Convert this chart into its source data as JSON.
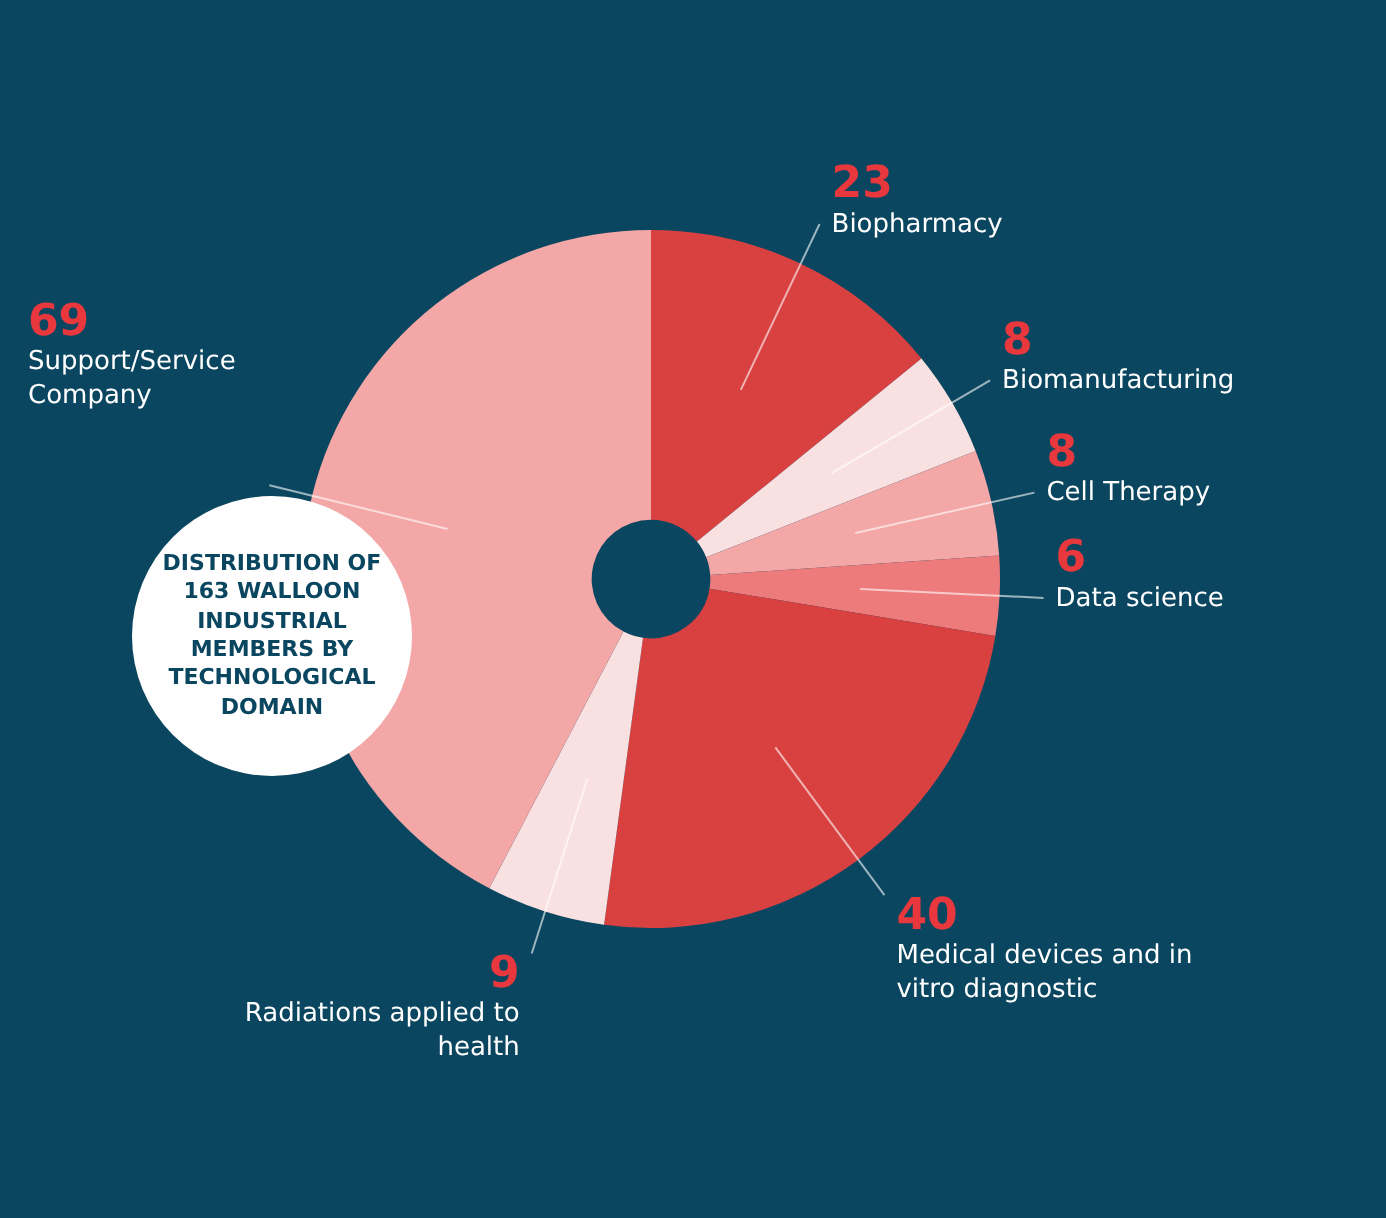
{
  "chart_data": {
    "type": "donut",
    "title": "DISTRIBUTION OF 163 WALLOON INDUSTRIAL MEMBERS BY TECHNOLOGICAL DOMAIN",
    "categories": [
      "Biopharmacy",
      "Biomanufacturing",
      "Cell Therapy",
      "Data science",
      "Medical devices and in vitro diagnostic",
      "Radiations applied to health",
      "Support/Service Company"
    ],
    "values": [
      23,
      8,
      8,
      6,
      40,
      9,
      69
    ],
    "colors": [
      "#d94141",
      "#fae1e1",
      "#f4a7a7",
      "#ee7b7b",
      "#d94141",
      "#fae1e1",
      "#f4a7a7"
    ],
    "data_labels": true,
    "legend": false
  }
}
